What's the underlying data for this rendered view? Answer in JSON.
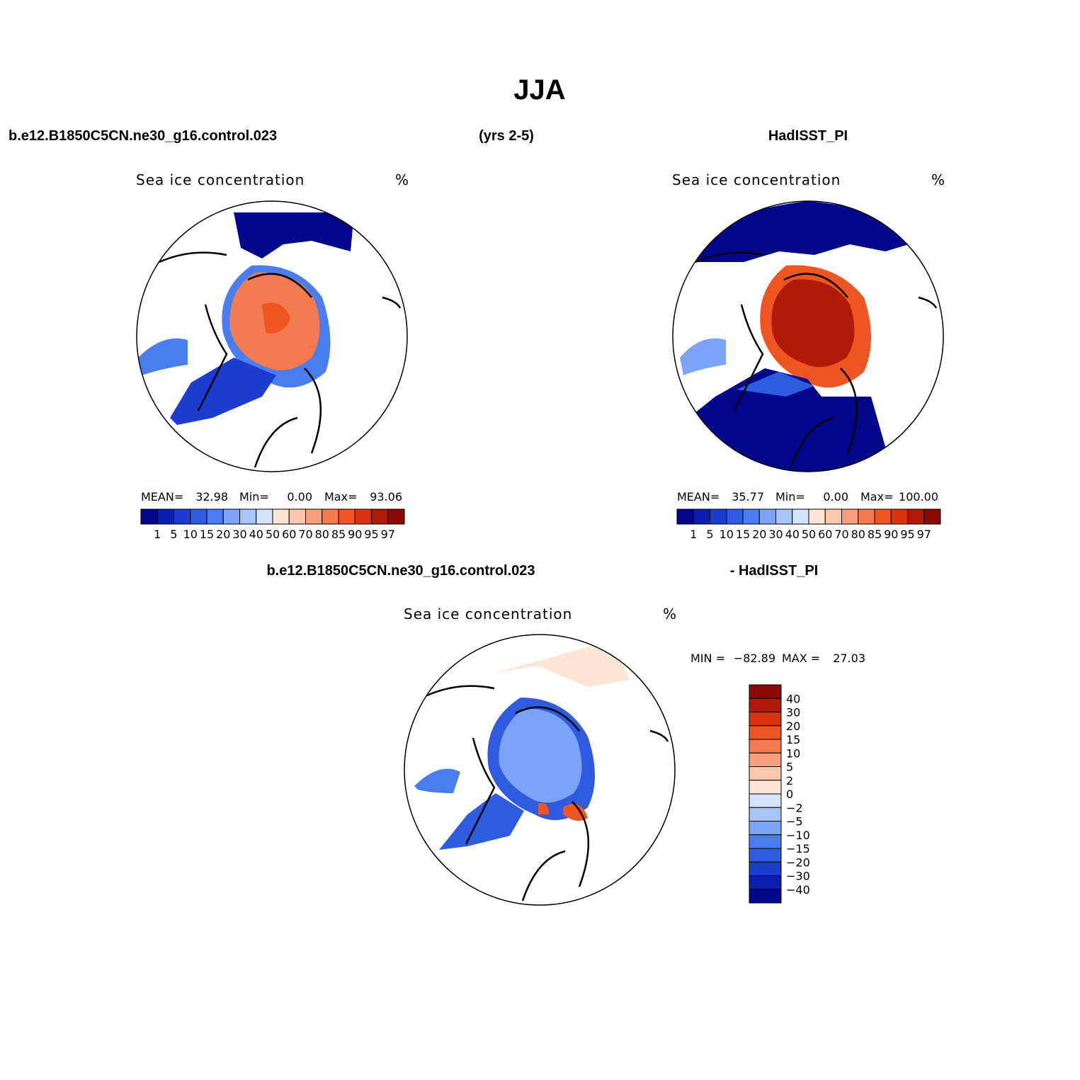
{
  "title": "JJA",
  "header": {
    "left": "b.e12.B1850C5CN.ne30_g16.control.023",
    "center": "(yrs 2-5)",
    "right": "HadISST_PI"
  },
  "panels": [
    {
      "title": "Sea ice concentration",
      "units": "%",
      "stats": [
        {
          "label": "MEAN=",
          "value": "32.98"
        },
        {
          "label": "Min=",
          "value": "0.00"
        },
        {
          "label": "Max=",
          "value": "93.06"
        }
      ]
    },
    {
      "title": "Sea ice concentration",
      "units": "%",
      "stats": [
        {
          "label": "MEAN=",
          "value": "35.77"
        },
        {
          "label": "Min=",
          "value": "0.00"
        },
        {
          "label": "Max=",
          "value": "100.00"
        }
      ]
    }
  ],
  "colorbar": {
    "colors": [
      "#00078a",
      "#0a1fb0",
      "#1a3ccf",
      "#2e5be0",
      "#4a7ef0",
      "#7ca3f5",
      "#a9c4f7",
      "#d4e4fa",
      "#fde6d6",
      "#fbc7ad",
      "#f8a07e",
      "#f47b4f",
      "#ee5522",
      "#d9340f",
      "#b11a08",
      "#8a0a05"
    ],
    "labels": [
      "1",
      "5",
      "10",
      "15",
      "20",
      "30",
      "40",
      "50",
      "60",
      "70",
      "80",
      "85",
      "90",
      "95",
      "97"
    ]
  },
  "difference": {
    "left": "b.e12.B1850C5CN.ne30_g16.control.023",
    "right": "- HadISST_PI",
    "title": "Sea ice concentration",
    "units": "%",
    "stats": [
      {
        "label": "MIN =",
        "value": "−82.89"
      },
      {
        "label": "MAX =",
        "value": "27.03"
      }
    ],
    "colorbar": {
      "colors": [
        "#8a0a05",
        "#b11a08",
        "#d9340f",
        "#ee5522",
        "#f47b4f",
        "#f8a07e",
        "#fbc7ad",
        "#fde6d6",
        "#d4e4fa",
        "#a9c4f7",
        "#7ca3f5",
        "#4a7ef0",
        "#2e5be0",
        "#1a3ccf",
        "#0a1fb0",
        "#00078a"
      ],
      "labels": [
        "40",
        "30",
        "20",
        "15",
        "10",
        "5",
        "2",
        "0",
        "−2",
        "−5",
        "−10",
        "−15",
        "−20",
        "−30",
        "−40"
      ]
    }
  }
}
